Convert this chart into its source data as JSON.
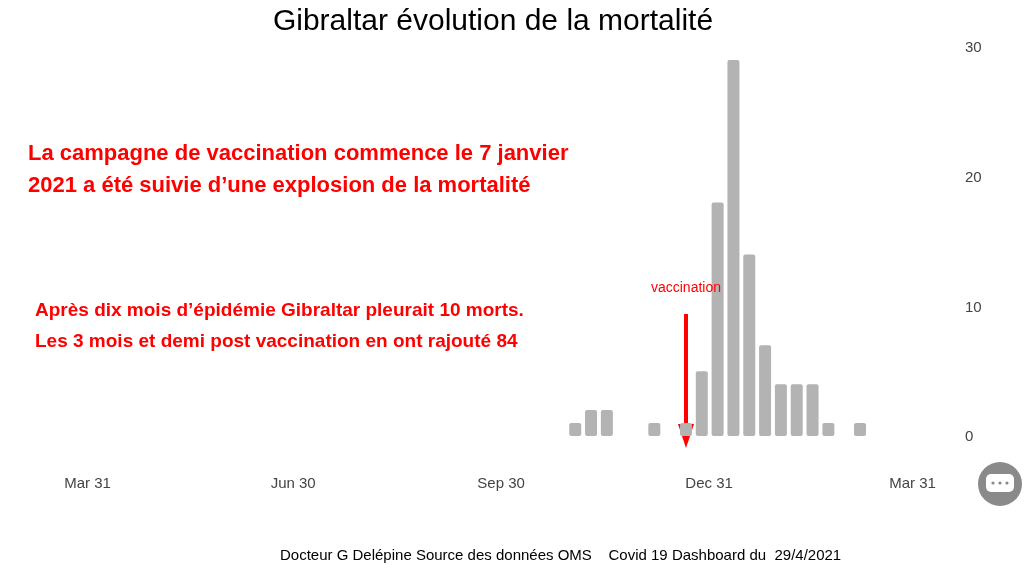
{
  "chart_data": {
    "type": "bar",
    "title": "Gibraltar évolution de la mortalité",
    "x": [
      "2020-11-02",
      "2020-11-09",
      "2020-11-16",
      "2020-11-23",
      "2020-11-30",
      "2020-12-07",
      "2020-12-14",
      "2020-12-21",
      "2020-12-28",
      "2021-01-04",
      "2021-01-11",
      "2021-01-18",
      "2021-01-25",
      "2021-02-01",
      "2021-02-08",
      "2021-02-15",
      "2021-02-22",
      "2021-03-01",
      "2021-03-08"
    ],
    "values": [
      1,
      2,
      2,
      0,
      0,
      1,
      0,
      1,
      5,
      18,
      29,
      14,
      7,
      4,
      4,
      4,
      1,
      0,
      1
    ],
    "color": "#b3b3b3",
    "xlim": [
      "2020-03-31",
      "2021-03-31"
    ],
    "xticks": [
      {
        "value": "2020-03-31",
        "label": "Mar 31"
      },
      {
        "value": "2020-06-30",
        "label": "Jun 30"
      },
      {
        "value": "2020-09-30",
        "label": "Sep 30"
      },
      {
        "value": "2020-12-31",
        "label": "Dec 31"
      },
      {
        "value": "2021-03-31",
        "label": "Mar 31"
      }
    ],
    "ylim": [
      0,
      30
    ],
    "yticks": [
      0,
      10,
      20,
      30
    ],
    "grid": false,
    "annotations": [
      "vaccination",
      "La campagne de vaccination commence le 7 janvier\n2021 a été suivie d’une explosion de la mortalité",
      "Après dix mois d’épidémie Gibraltar pleurait 10 morts.\nLes 3 mois et demi post vaccination en ont rajouté 84",
      "Docteur G Delépine Source des données OMS    Covid 19 Dashboard du  29/4/2021"
    ]
  }
}
